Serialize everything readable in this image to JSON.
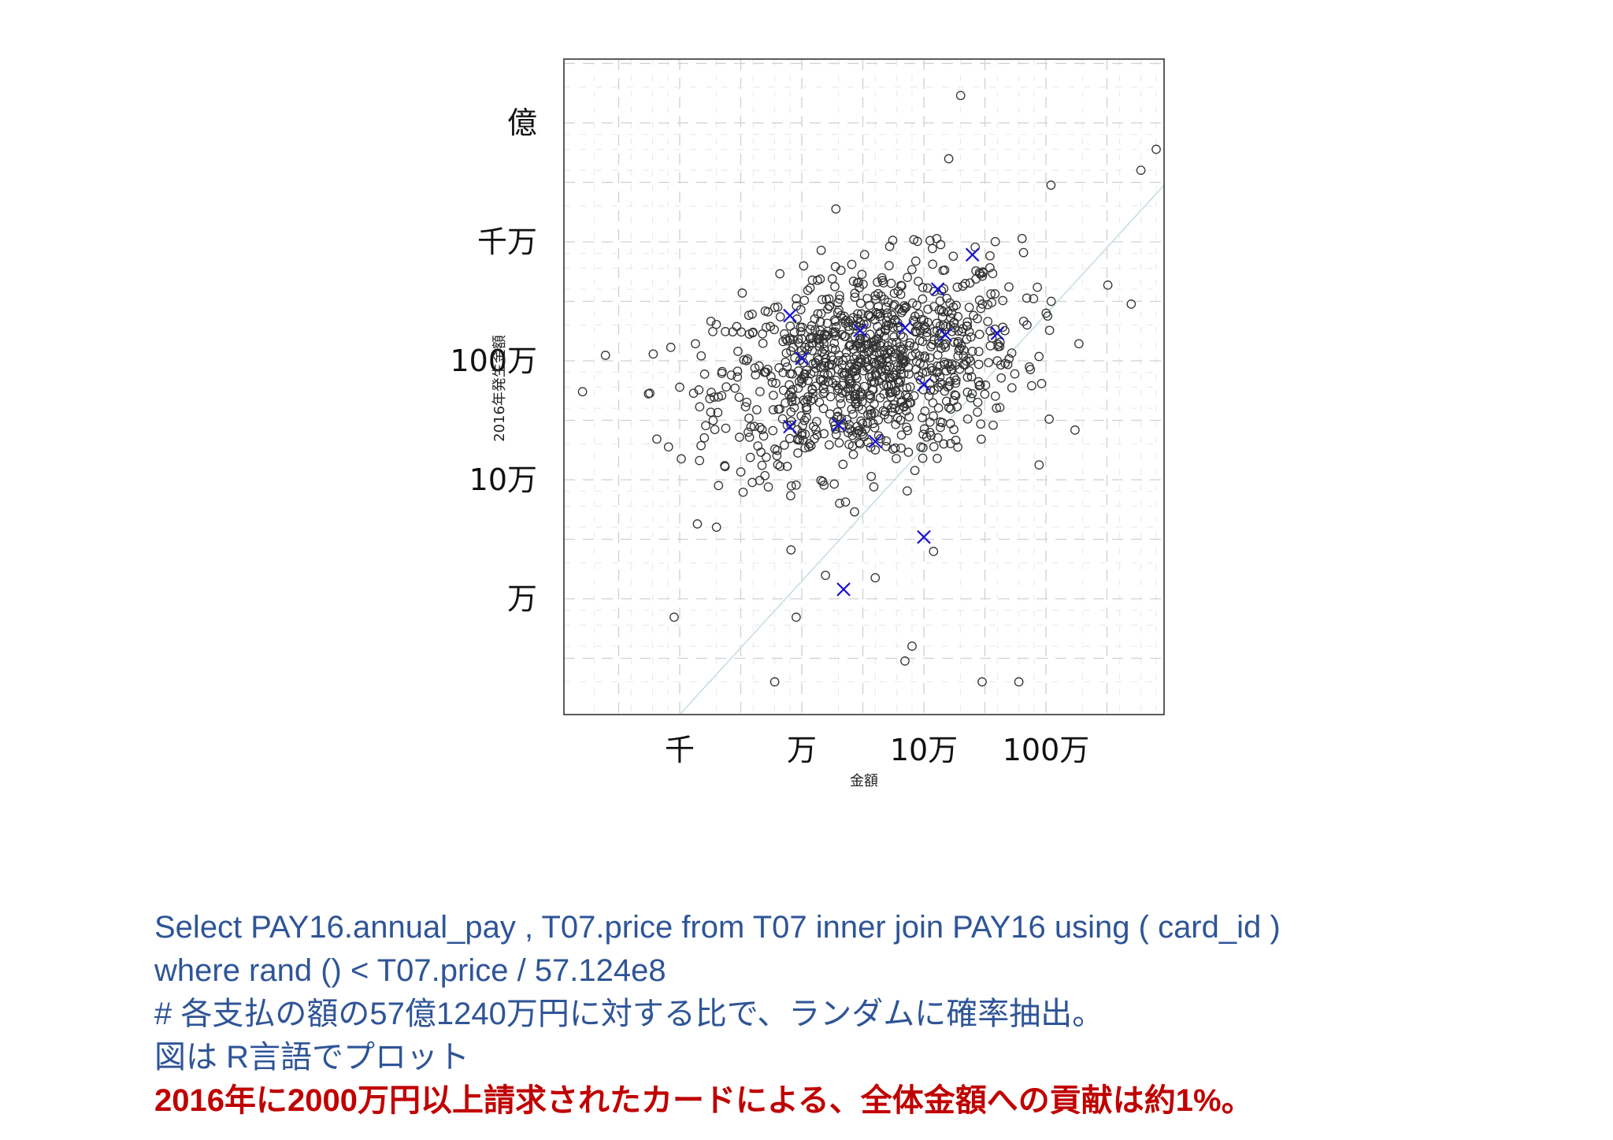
{
  "chart_data": {
    "type": "scatter",
    "title": "",
    "xlabel": "金額",
    "ylabel": "2016年発生金額",
    "x_scale": "log10",
    "y_scale": "log10",
    "xlim": [
      100,
      30000000
    ],
    "ylim": [
      300,
      200000000
    ],
    "x_ticks": [
      {
        "value": 1000,
        "label": "千"
      },
      {
        "value": 10000,
        "label": "万"
      },
      {
        "value": 100000,
        "label": "10万"
      },
      {
        "value": 1000000,
        "label": "100万"
      }
    ],
    "y_ticks": [
      {
        "value": 10000,
        "label": "万"
      },
      {
        "value": 100000,
        "label": "10万"
      },
      {
        "value": 1000000,
        "label": "100万"
      },
      {
        "value": 10000000,
        "label": "千万"
      },
      {
        "value": 100000000,
        "label": "億"
      }
    ],
    "grid": true,
    "reference_line": "y = x",
    "series": [
      {
        "marker": "circle",
        "color": "#333333",
        "point_count_approx": 1000,
        "points": [
          [
            160,
            550000
          ],
          [
            650,
            220000
          ],
          [
            1000,
            600000
          ],
          [
            1500,
            1100000
          ],
          [
            3000,
            1200000
          ],
          [
            5000,
            800000
          ],
          [
            8000,
            1500000
          ],
          [
            10000,
            700000
          ],
          [
            20000,
            1000000
          ],
          [
            30000,
            1300000
          ],
          [
            50000,
            900000
          ],
          [
            80000,
            1100000
          ],
          [
            150000,
            1300000
          ],
          [
            250000,
            1200000
          ],
          [
            400000,
            1000000
          ],
          [
            700000,
            2000000
          ],
          [
            1100000,
            30000000
          ],
          [
            6000000,
            40000000
          ],
          [
            8000000,
            60000000
          ],
          [
            200000,
            170000000
          ],
          [
            160000,
            50000000
          ],
          [
            900,
            7000
          ],
          [
            6000,
            2000
          ],
          [
            9000,
            7000
          ],
          [
            70000,
            3000
          ],
          [
            80000,
            4000
          ],
          [
            300000,
            2000
          ],
          [
            120000,
            25000
          ],
          [
            2000,
            40000
          ],
          [
            40000,
            15000
          ],
          [
            600000,
            2000
          ],
          [
            5000000,
            3000000
          ]
        ]
      },
      {
        "marker": "x",
        "color": "#1a14d4",
        "points": [
          [
            8000,
            2400000
          ],
          [
            10000,
            1050000
          ],
          [
            8000,
            280000
          ],
          [
            20000,
            290000
          ],
          [
            22000,
            12000
          ],
          [
            30000,
            1800000
          ],
          [
            40000,
            210000
          ],
          [
            70000,
            1900000
          ],
          [
            100000,
            630000
          ],
          [
            100000,
            33000
          ],
          [
            130000,
            4000000
          ],
          [
            150000,
            1650000
          ],
          [
            250000,
            7800000
          ],
          [
            400000,
            1700000
          ]
        ]
      }
    ]
  },
  "caption": {
    "line1": "Select PAY16.annual_pay , T07.price from T07 inner join PAY16 using ( card_id )",
    "line2": "where  rand () < T07.price / 57.124e8",
    "line3": "# 各支払の額の57億1240万円に対する比で、ランダムに確率抽出。",
    "line4": "図は R言語でプロット",
    "line5": "2016年に2000万円以上請求されたカードによる、全体金額への貢献は約1%。"
  }
}
